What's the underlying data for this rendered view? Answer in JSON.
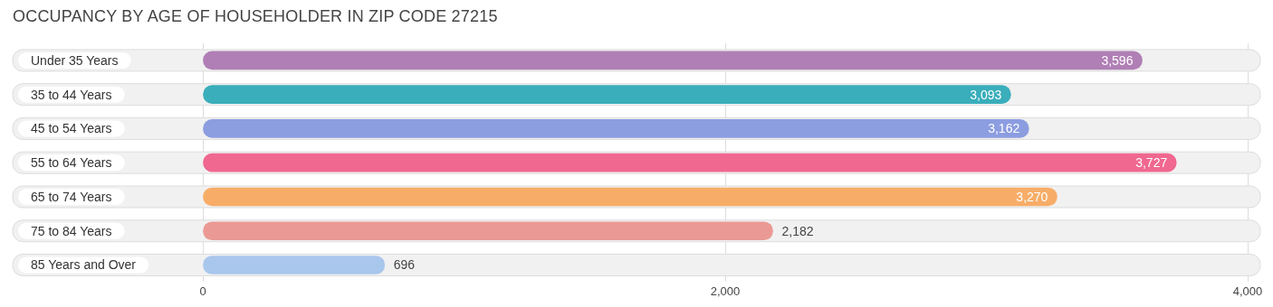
{
  "chart_data": {
    "type": "bar",
    "orientation": "horizontal",
    "title": "OCCUPANCY BY AGE OF HOUSEHOLDER IN ZIP CODE 27215",
    "categories": [
      "Under 35 Years",
      "35 to 44 Years",
      "45 to 54 Years",
      "55 to 64 Years",
      "65 to 74 Years",
      "75 to 84 Years",
      "85 Years and Over"
    ],
    "values": [
      3596,
      3093,
      3162,
      3727,
      3270,
      2182,
      696
    ],
    "colors": [
      "#b07fb5",
      "#3aaebb",
      "#8c9de0",
      "#f06890",
      "#f7ad68",
      "#eb9994",
      "#a9c6ec"
    ],
    "xlim": [
      0,
      4000
    ],
    "xticks": [
      0,
      {
        "value": 2000,
        "label": "2,000"
      },
      {
        "value": 4000,
        "label": "4,000"
      }
    ],
    "value_labels": [
      "3,596",
      "3,093",
      "3,162",
      "3,727",
      "3,270",
      "2,182",
      "696"
    ],
    "grid": "x",
    "legend": false
  }
}
